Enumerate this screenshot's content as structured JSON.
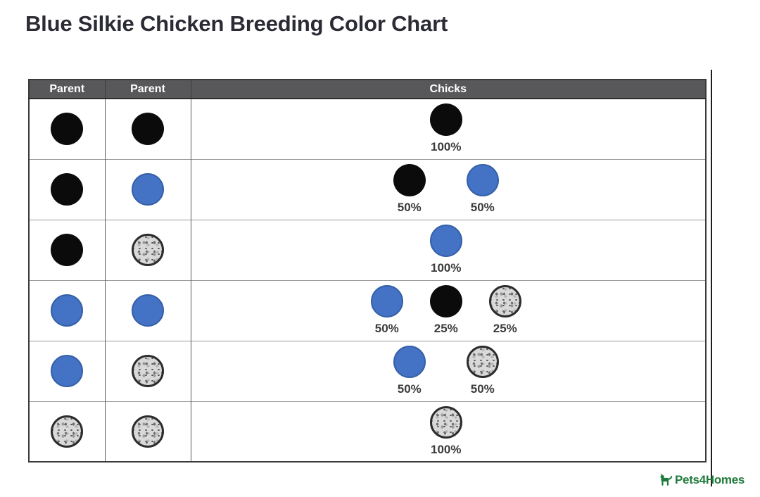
{
  "title": "Blue Silkie Chicken Breeding Color Chart",
  "colors": {
    "title": "#2b2b35",
    "header_bg": "#58585a",
    "header_text": "#ffffff",
    "blue_dot": "#4472c4",
    "black_dot": "#0b0b0b",
    "splash_base": "#d9d9d9",
    "pct_text": "#3b3b3b",
    "logo_green": "#1e7b3c"
  },
  "chart_data": {
    "type": "table",
    "title": "Blue Silkie Chicken Breeding Color Chart",
    "columns": [
      "Parent",
      "Parent",
      "Chicks"
    ],
    "legend": {
      "black": "solid black circle",
      "blue": "solid blue circle",
      "splash": "speckled gray circle with dark ring"
    },
    "rows": [
      {
        "parents": [
          "black",
          "black"
        ],
        "chicks": [
          {
            "color": "black",
            "percent": 100
          }
        ]
      },
      {
        "parents": [
          "black",
          "blue"
        ],
        "chicks": [
          {
            "color": "black",
            "percent": 50
          },
          {
            "color": "blue",
            "percent": 50
          }
        ]
      },
      {
        "parents": [
          "black",
          "splash"
        ],
        "chicks": [
          {
            "color": "blue",
            "percent": 100
          }
        ]
      },
      {
        "parents": [
          "blue",
          "blue"
        ],
        "chicks": [
          {
            "color": "blue",
            "percent": 50
          },
          {
            "color": "black",
            "percent": 25
          },
          {
            "color": "splash",
            "percent": 25
          }
        ]
      },
      {
        "parents": [
          "blue",
          "splash"
        ],
        "chicks": [
          {
            "color": "blue",
            "percent": 50
          },
          {
            "color": "splash",
            "percent": 50
          }
        ]
      },
      {
        "parents": [
          "splash",
          "splash"
        ],
        "chicks": [
          {
            "color": "splash",
            "percent": 100
          }
        ]
      }
    ]
  },
  "footer": {
    "logo_text": "Pets4Homes"
  }
}
